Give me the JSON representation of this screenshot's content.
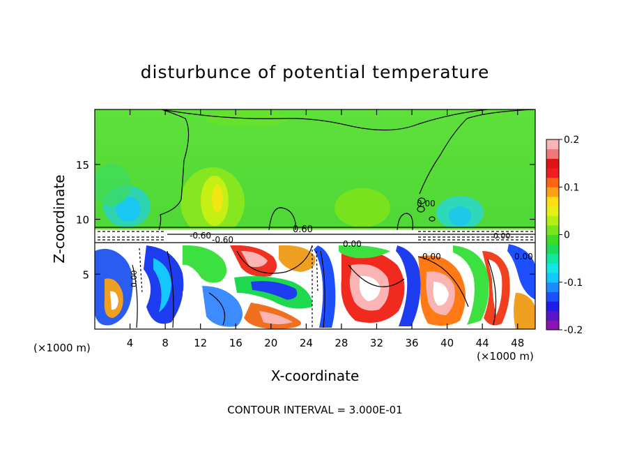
{
  "chart_data": {
    "type": "heatmap",
    "title": "disturbunce of potential temperature",
    "xlabel": "X-coordinate",
    "ylabel": "Z-coordinate",
    "x_unit": "(×1000 m)",
    "x_unit_right": "(×1000 m)",
    "xlim": [
      0,
      50
    ],
    "ylim": [
      0,
      20
    ],
    "x_ticks": [
      4,
      8,
      12,
      16,
      20,
      24,
      28,
      32,
      36,
      40,
      44,
      48
    ],
    "y_ticks": [
      5,
      10,
      15
    ],
    "colorbar": {
      "vmin": -0.2,
      "vmax": 0.2,
      "tick_labels": [
        "0.2",
        "0.1",
        "0",
        "-0.1",
        "-0.2"
      ],
      "tick_values": [
        0.2,
        0.1,
        0,
        -0.1,
        -0.2
      ],
      "colors": [
        "#8a14b4",
        "#5a14c8",
        "#1e1ee6",
        "#1e50ff",
        "#1e8cff",
        "#14c8ff",
        "#14e6e6",
        "#14e6a0",
        "#1edc5a",
        "#3cdc28",
        "#78e61e",
        "#b4f014",
        "#e6f014",
        "#ffdc14",
        "#ffa014",
        "#ff6414",
        "#f01e1e",
        "#dc1414",
        "#f07878",
        "#fab4b4"
      ]
    },
    "contour_labels": [
      "0.60",
      "0.00",
      "0.00",
      "-0.60",
      "0.00",
      "0.00",
      "0.00",
      "-0.60",
      "0.00"
    ],
    "footer": "CONTOUR INTERVAL = 3.000E-01"
  }
}
